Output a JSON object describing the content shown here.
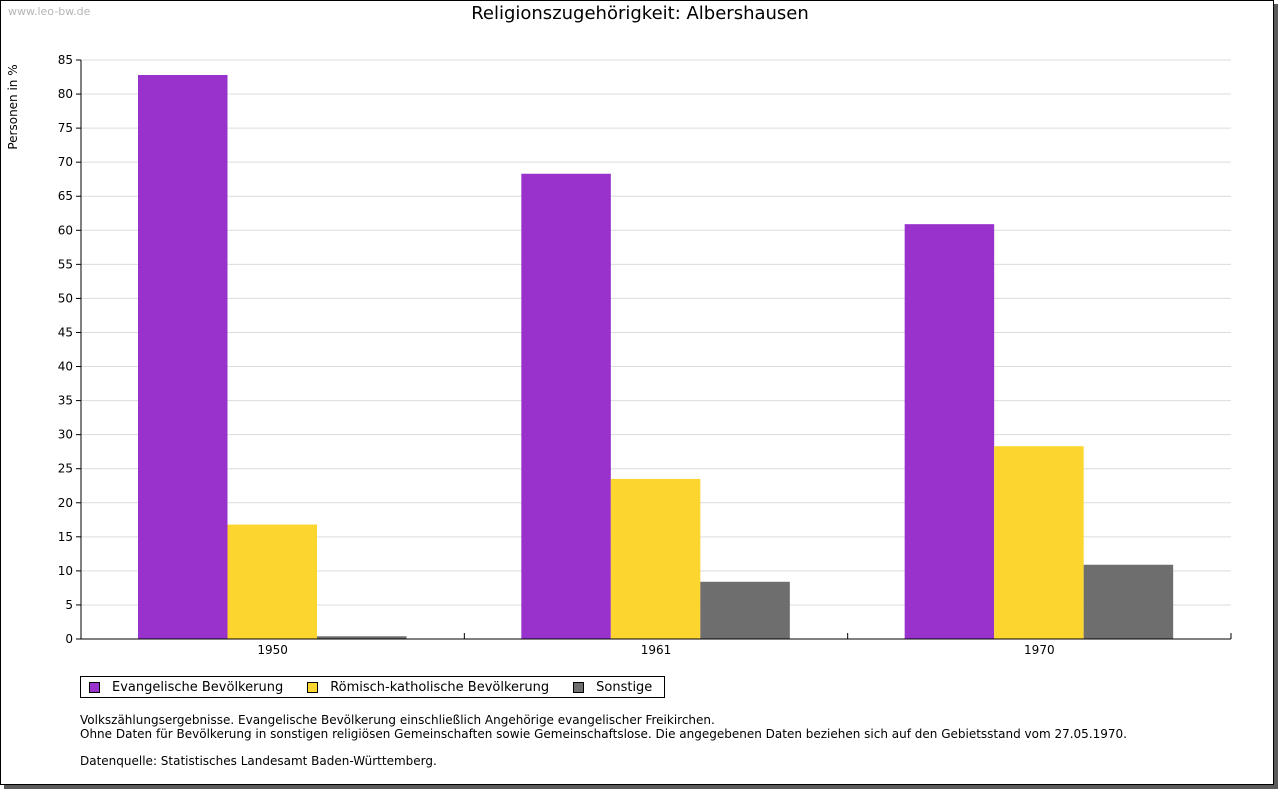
{
  "watermark": "www.leo-bw.de",
  "chart_data": {
    "type": "bar",
    "title": "Religionszugehörigkeit: Albershausen",
    "xlabel": "",
    "ylabel": "Personen in %",
    "ylim": [
      0,
      85
    ],
    "ytick_step": 5,
    "grid": true,
    "legend_position": "bottom-left",
    "categories": [
      "1950",
      "1961",
      "1970"
    ],
    "series": [
      {
        "name": "Evangelische Bevölkerung",
        "color": "#9932cc",
        "values": [
          82.8,
          68.3,
          60.9
        ]
      },
      {
        "name": "Römisch-katholische Bevölkerung",
        "color": "#fcd52e",
        "values": [
          16.8,
          23.5,
          28.3
        ]
      },
      {
        "name": "Sonstige",
        "color": "#6e6e6e",
        "values": [
          0.4,
          8.4,
          10.9
        ]
      }
    ]
  },
  "notes": {
    "line1": "Volkszählungsergebnisse. Evangelische Bevölkerung einschließlich Angehörige evangelischer Freikirchen.",
    "line2": "Ohne Daten für Bevölkerung in sonstigen religiösen Gemeinschaften sowie Gemeinschaftslose. Die angegebenen Daten beziehen sich auf den Gebietsstand vom 27.05.1970.",
    "source": "Datenquelle: Statistisches Landesamt Baden-Württemberg."
  }
}
